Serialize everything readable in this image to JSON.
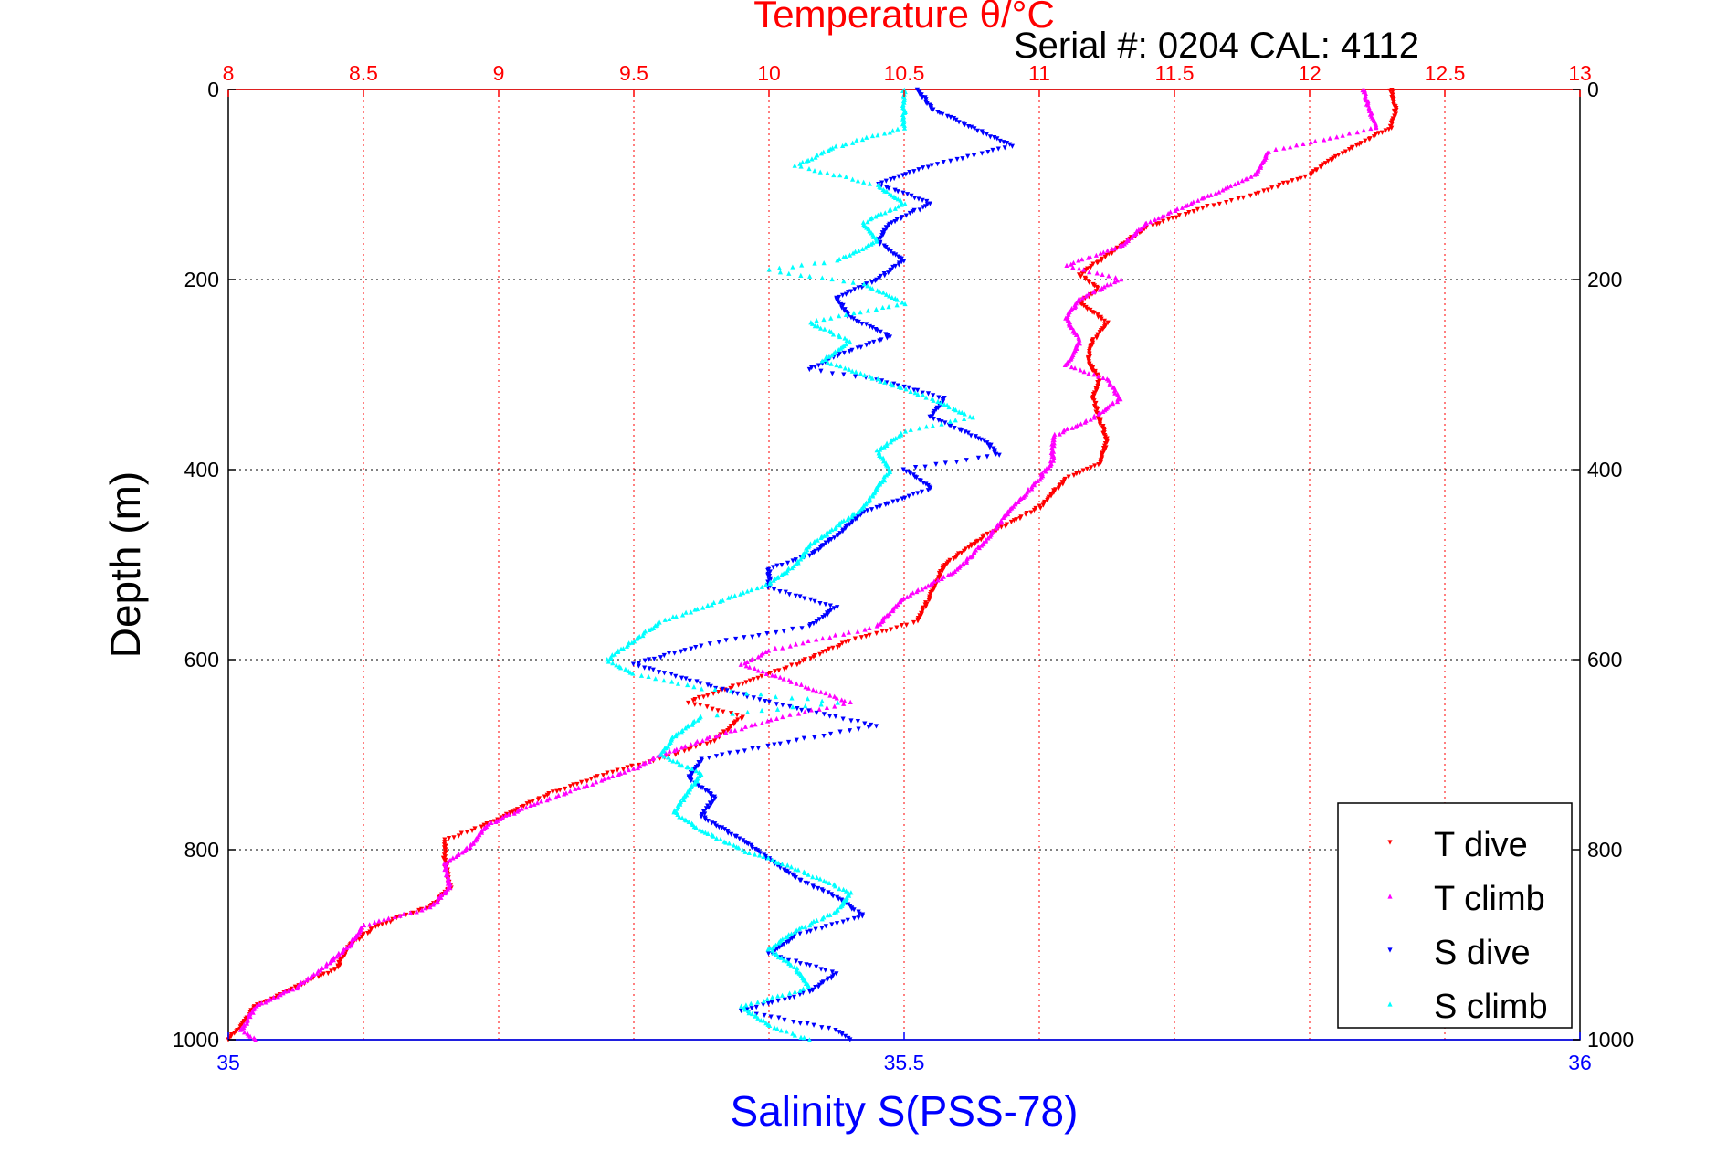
{
  "chart_data": {
    "type": "scatter",
    "title": "Temperature θ/°C",
    "subtitle": "Serial #: 0204  CAL: 4112",
    "xlabel_top": "Temperature θ/°C",
    "xlabel": "Salinity S(PSS-78)",
    "ylabel": "Depth (m)",
    "ylim": [
      0,
      1000
    ],
    "y_reversed": true,
    "x_top_lim": [
      8,
      13
    ],
    "x_bottom_lim": [
      35,
      36
    ],
    "top_ticks": [
      "8",
      "8.5",
      "9",
      "9.5",
      "10",
      "10.5",
      "11",
      "11.5",
      "12",
      "12.5",
      "13"
    ],
    "bottom_ticks": [
      "35",
      "35.5",
      "36"
    ],
    "y_ticks": [
      "0",
      "200",
      "400",
      "600",
      "800",
      "1000"
    ],
    "grid": true,
    "legend_position": "bottom-right",
    "colors": {
      "temperature_axis": "#ff0000",
      "salinity_axis": "#0000ff",
      "grid_vertical": "#ff0000",
      "grid_horizontal": "#000000"
    },
    "series": [
      {
        "name": "T dive",
        "axis": "top",
        "color": "#ff0000",
        "marker": "triangle-down",
        "points": [
          [
            12.3,
            0
          ],
          [
            12.32,
            20
          ],
          [
            12.3,
            40
          ],
          [
            12.1,
            70
          ],
          [
            12.0,
            90
          ],
          [
            11.8,
            110
          ],
          [
            11.6,
            125
          ],
          [
            11.4,
            145
          ],
          [
            11.25,
            175
          ],
          [
            11.15,
            195
          ],
          [
            11.22,
            210
          ],
          [
            11.15,
            225
          ],
          [
            11.25,
            245
          ],
          [
            11.2,
            265
          ],
          [
            11.18,
            285
          ],
          [
            11.22,
            305
          ],
          [
            11.2,
            325
          ],
          [
            11.22,
            345
          ],
          [
            11.25,
            370
          ],
          [
            11.22,
            395
          ],
          [
            11.1,
            410
          ],
          [
            11.0,
            440
          ],
          [
            10.8,
            470
          ],
          [
            10.65,
            500
          ],
          [
            10.6,
            530
          ],
          [
            10.55,
            560
          ],
          [
            10.3,
            580
          ],
          [
            10.1,
            605
          ],
          [
            9.9,
            625
          ],
          [
            9.7,
            645
          ],
          [
            9.9,
            660
          ],
          [
            9.8,
            685
          ],
          [
            9.65,
            700
          ],
          [
            9.4,
            720
          ],
          [
            9.2,
            740
          ],
          [
            9.05,
            760
          ],
          [
            8.95,
            775
          ],
          [
            8.8,
            790
          ],
          [
            8.8,
            810
          ],
          [
            8.82,
            840
          ],
          [
            8.75,
            860
          ],
          [
            8.55,
            880
          ],
          [
            8.45,
            900
          ],
          [
            8.4,
            925
          ],
          [
            8.25,
            945
          ],
          [
            8.1,
            965
          ],
          [
            8.05,
            985
          ],
          [
            8.0,
            1000
          ]
        ]
      },
      {
        "name": "T climb",
        "axis": "top",
        "color": "#ff00ff",
        "marker": "triangle-up",
        "points": [
          [
            12.2,
            0
          ],
          [
            12.22,
            20
          ],
          [
            12.25,
            40
          ],
          [
            11.85,
            65
          ],
          [
            11.8,
            90
          ],
          [
            11.6,
            115
          ],
          [
            11.4,
            140
          ],
          [
            11.3,
            165
          ],
          [
            11.1,
            185
          ],
          [
            11.3,
            200
          ],
          [
            11.15,
            220
          ],
          [
            11.1,
            240
          ],
          [
            11.15,
            265
          ],
          [
            11.1,
            290
          ],
          [
            11.25,
            305
          ],
          [
            11.3,
            325
          ],
          [
            11.2,
            345
          ],
          [
            11.05,
            365
          ],
          [
            11.05,
            390
          ],
          [
            11.0,
            410
          ],
          [
            10.9,
            440
          ],
          [
            10.8,
            475
          ],
          [
            10.7,
            505
          ],
          [
            10.5,
            535
          ],
          [
            10.4,
            565
          ],
          [
            10.0,
            590
          ],
          [
            9.9,
            605
          ],
          [
            10.1,
            625
          ],
          [
            10.3,
            645
          ],
          [
            10.05,
            660
          ],
          [
            9.8,
            680
          ],
          [
            9.6,
            700
          ],
          [
            9.5,
            715
          ],
          [
            9.3,
            735
          ],
          [
            9.1,
            755
          ],
          [
            8.95,
            775
          ],
          [
            8.9,
            795
          ],
          [
            8.8,
            815
          ],
          [
            8.82,
            840
          ],
          [
            8.75,
            860
          ],
          [
            8.5,
            880
          ],
          [
            8.45,
            900
          ],
          [
            8.35,
            925
          ],
          [
            8.25,
            945
          ],
          [
            8.1,
            965
          ],
          [
            8.05,
            990
          ],
          [
            8.1,
            1000
          ]
        ]
      },
      {
        "name": "S dive",
        "axis": "bottom",
        "color": "#0000ff",
        "marker": "triangle-down",
        "points": [
          [
            35.51,
            0
          ],
          [
            35.52,
            20
          ],
          [
            35.55,
            40
          ],
          [
            35.58,
            60
          ],
          [
            35.52,
            80
          ],
          [
            35.48,
            100
          ],
          [
            35.52,
            120
          ],
          [
            35.49,
            140
          ],
          [
            35.48,
            160
          ],
          [
            35.5,
            180
          ],
          [
            35.48,
            200
          ],
          [
            35.45,
            220
          ],
          [
            35.46,
            240
          ],
          [
            35.49,
            260
          ],
          [
            35.45,
            280
          ],
          [
            35.43,
            295
          ],
          [
            35.48,
            305
          ],
          [
            35.53,
            325
          ],
          [
            35.52,
            345
          ],
          [
            35.56,
            370
          ],
          [
            35.57,
            385
          ],
          [
            35.5,
            400
          ],
          [
            35.52,
            420
          ],
          [
            35.47,
            445
          ],
          [
            35.45,
            470
          ],
          [
            35.43,
            490
          ],
          [
            35.4,
            505
          ],
          [
            35.4,
            525
          ],
          [
            35.45,
            545
          ],
          [
            35.43,
            565
          ],
          [
            35.35,
            585
          ],
          [
            35.3,
            605
          ],
          [
            35.35,
            625
          ],
          [
            35.4,
            645
          ],
          [
            35.48,
            670
          ],
          [
            35.42,
            685
          ],
          [
            35.35,
            705
          ],
          [
            35.34,
            725
          ],
          [
            35.36,
            745
          ],
          [
            35.35,
            765
          ],
          [
            35.38,
            790
          ],
          [
            35.4,
            810
          ],
          [
            35.42,
            830
          ],
          [
            35.45,
            850
          ],
          [
            35.47,
            870
          ],
          [
            35.42,
            890
          ],
          [
            35.4,
            910
          ],
          [
            35.45,
            930
          ],
          [
            35.43,
            950
          ],
          [
            35.38,
            970
          ],
          [
            35.45,
            990
          ],
          [
            35.46,
            1000
          ]
        ]
      },
      {
        "name": "S climb",
        "axis": "bottom",
        "color": "#00ffff",
        "marker": "triangle-up",
        "points": [
          [
            35.5,
            0
          ],
          [
            35.5,
            20
          ],
          [
            35.5,
            40
          ],
          [
            35.45,
            60
          ],
          [
            35.42,
            80
          ],
          [
            35.48,
            100
          ],
          [
            35.5,
            120
          ],
          [
            35.47,
            140
          ],
          [
            35.48,
            160
          ],
          [
            35.45,
            180
          ],
          [
            35.4,
            190
          ],
          [
            35.47,
            205
          ],
          [
            35.5,
            225
          ],
          [
            35.43,
            245
          ],
          [
            35.46,
            265
          ],
          [
            35.44,
            285
          ],
          [
            35.48,
            305
          ],
          [
            35.52,
            325
          ],
          [
            35.55,
            345
          ],
          [
            35.5,
            360
          ],
          [
            35.48,
            380
          ],
          [
            35.49,
            400
          ],
          [
            35.48,
            420
          ],
          [
            35.47,
            440
          ],
          [
            35.45,
            460
          ],
          [
            35.43,
            480
          ],
          [
            35.42,
            500
          ],
          [
            35.4,
            520
          ],
          [
            35.36,
            540
          ],
          [
            35.32,
            560
          ],
          [
            35.3,
            580
          ],
          [
            35.28,
            600
          ],
          [
            35.3,
            615
          ],
          [
            35.35,
            630
          ],
          [
            35.45,
            645
          ],
          [
            35.35,
            660
          ],
          [
            35.33,
            680
          ],
          [
            35.32,
            700
          ],
          [
            35.35,
            720
          ],
          [
            35.34,
            740
          ],
          [
            35.33,
            760
          ],
          [
            35.35,
            780
          ],
          [
            35.38,
            800
          ],
          [
            35.42,
            820
          ],
          [
            35.46,
            845
          ],
          [
            35.45,
            865
          ],
          [
            35.42,
            885
          ],
          [
            35.4,
            905
          ],
          [
            35.42,
            925
          ],
          [
            35.43,
            945
          ],
          [
            35.38,
            965
          ],
          [
            35.4,
            985
          ],
          [
            35.43,
            1000
          ]
        ]
      }
    ]
  }
}
